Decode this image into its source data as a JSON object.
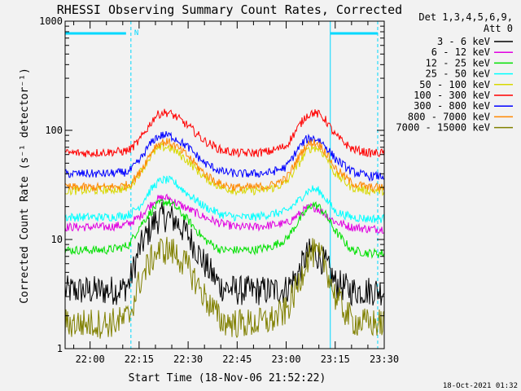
{
  "chart_data": {
    "type": "line",
    "title": "RHESSI Observing Summary Count Rates, Corrected",
    "xlabel": "Start Time (18-Nov-06 21:52:22)",
    "ylabel": "Corrected Count Rate (s⁻¹ detector⁻¹)",
    "y_scale": "log",
    "ylim": [
      1,
      1000
    ],
    "xlim": [
      "21:52:22",
      "23:30:00"
    ],
    "x_ticks": [
      "22:00",
      "22:15",
      "22:30",
      "22:45",
      "23:00",
      "23:15",
      "23:30"
    ],
    "y_ticks": [
      "1",
      "10",
      "100",
      "1000"
    ],
    "legend": {
      "placement": "outside-right",
      "header": [
        "Det 1,3,4,5,6,9,",
        "Att 0"
      ]
    },
    "markers": {
      "night_start": [
        "22:12:30",
        "23:28:00"
      ],
      "night_end": [
        "23:13:30"
      ],
      "night_label": "N"
    },
    "x": [
      "21:52",
      "22:00",
      "22:05",
      "22:10",
      "22:12",
      "22:15",
      "22:18",
      "22:20",
      "22:22",
      "22:24",
      "22:26",
      "22:30",
      "22:35",
      "22:40",
      "22:45",
      "22:50",
      "22:55",
      "23:00",
      "23:04",
      "23:06",
      "23:08",
      "23:10",
      "23:12",
      "23:15",
      "23:20",
      "23:25",
      "23:29"
    ],
    "series": [
      {
        "name": "3 - 6 keV",
        "color": "#000000",
        "values": [
          3.4,
          3.4,
          3.4,
          3.5,
          4,
          8,
          12,
          15,
          16,
          16,
          15,
          11,
          6,
          3.7,
          3.4,
          3.4,
          3.4,
          3.5,
          5,
          7,
          8,
          7,
          6,
          4,
          3.4,
          3.4,
          3.4
        ]
      },
      {
        "name": "6 - 12 keV",
        "color": "#e000e0",
        "values": [
          13,
          13,
          13,
          13.5,
          14,
          16,
          20,
          23,
          24,
          24,
          22,
          19,
          16,
          14,
          13,
          13,
          13.5,
          14,
          17,
          19,
          20,
          19,
          17,
          14.5,
          13,
          12.5,
          12.5
        ]
      },
      {
        "name": "12 - 25 keV",
        "color": "#00e000",
        "values": [
          8,
          8,
          8,
          8.5,
          9,
          13,
          17,
          20,
          22,
          22,
          20,
          15,
          10,
          8,
          8,
          8,
          8.5,
          10,
          15,
          18,
          21,
          20,
          17,
          12,
          8,
          7.5,
          7.5
        ]
      },
      {
        "name": "25 - 50 keV",
        "color": "#00ffff",
        "values": [
          16,
          16,
          16,
          16.5,
          17,
          20,
          27,
          32,
          35,
          35,
          33,
          26,
          20,
          17,
          16,
          16,
          17,
          18,
          23,
          27,
          29,
          28,
          24,
          18,
          16,
          15.5,
          15.5
        ]
      },
      {
        "name": "50 - 100 keV",
        "color": "#d8d800",
        "values": [
          28,
          28,
          28.5,
          29,
          30,
          40,
          55,
          65,
          70,
          70,
          65,
          52,
          37,
          30,
          28,
          28,
          29,
          33,
          50,
          63,
          70,
          68,
          58,
          40,
          30,
          28,
          28
        ]
      },
      {
        "name": "100 - 300 keV",
        "color": "#ff0000",
        "values": [
          62,
          62,
          63,
          64,
          66,
          80,
          110,
          135,
          145,
          145,
          135,
          110,
          80,
          66,
          62,
          62,
          64,
          72,
          110,
          135,
          145,
          140,
          125,
          90,
          68,
          62,
          62
        ]
      },
      {
        "name": "300 - 800 keV",
        "color": "#0000ff",
        "values": [
          40,
          40,
          40,
          41,
          42,
          52,
          72,
          85,
          90,
          90,
          85,
          70,
          50,
          42,
          40,
          40,
          41,
          46,
          70,
          82,
          85,
          82,
          72,
          55,
          42,
          38,
          38
        ]
      },
      {
        "name": "800 - 7000 keV",
        "color": "#ff8800",
        "values": [
          30,
          30,
          30,
          31,
          32,
          40,
          58,
          72,
          78,
          78,
          72,
          58,
          40,
          32,
          30,
          30,
          31,
          36,
          58,
          72,
          78,
          75,
          64,
          45,
          33,
          30,
          30
        ]
      },
      {
        "name": "7000 - 15000 keV",
        "color": "#808000",
        "values": [
          1.7,
          1.7,
          1.7,
          1.8,
          2,
          4,
          6,
          7.5,
          8,
          8,
          7.5,
          5.5,
          3,
          1.8,
          1.7,
          1.7,
          1.8,
          2.2,
          4,
          6.5,
          7.5,
          7,
          6,
          3,
          1.8,
          1.7,
          1.7
        ]
      }
    ]
  },
  "footer": {
    "timestamp": "18-Oct-2021 01:32"
  }
}
